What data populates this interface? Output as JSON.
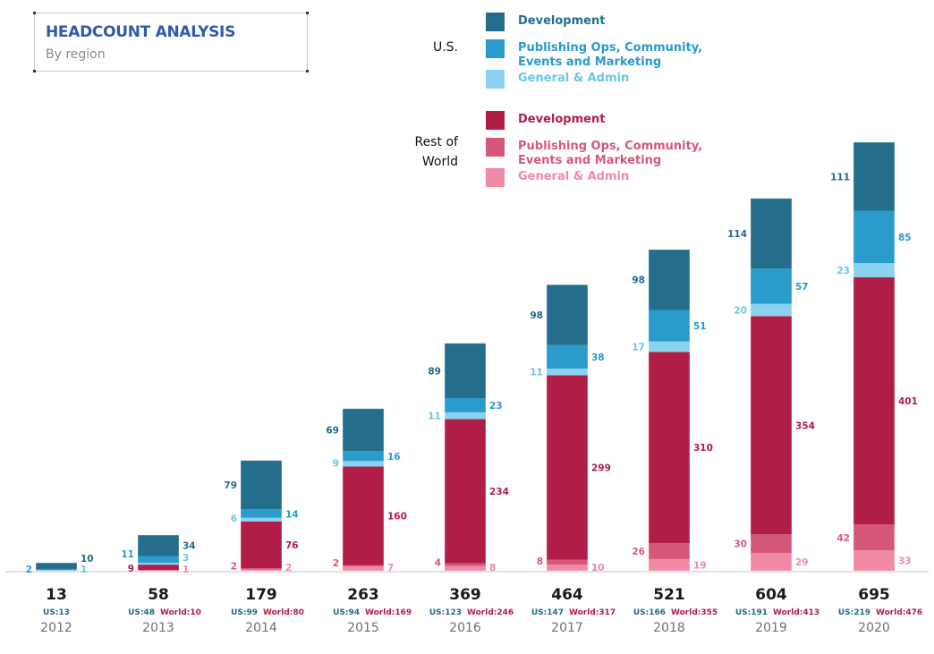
{
  "header": {
    "title": "HEADCOUNT ANALYSIS",
    "subtitle": "By region"
  },
  "legend": {
    "groups": [
      {
        "label": "U.S.",
        "items": [
          {
            "label": "Development",
            "color": "#246e8c"
          },
          {
            "label": "Publishing Ops, Community,\nEvents and Marketing",
            "color": "#2a9bca"
          },
          {
            "label": "General & Admin",
            "color": "#8ad2ee"
          }
        ]
      },
      {
        "label": "Rest of\nWorld",
        "items": [
          {
            "label": "Development",
            "color": "#b01e47"
          },
          {
            "label": "Publishing Ops, Community,\nEvents and Marketing",
            "color": "#d65879"
          },
          {
            "label": "General & Admin",
            "color": "#f08aa4"
          }
        ]
      }
    ]
  },
  "colors": {
    "us_dev": "#246e8c",
    "us_pub": "#2a9bca",
    "us_ga": "#8ad2ee",
    "us_ga_text": "#6cc4e6",
    "world_dev": "#b01e47",
    "world_pub": "#d65879",
    "world_ga": "#f08aa4",
    "us_total_text": "#236a8a",
    "world_total_text": "#b01e47",
    "total_text": "#1a1a1a",
    "year_text": "#707070",
    "axis": "#e0e0e0"
  },
  "chart_data": {
    "type": "bar",
    "stacked": true,
    "title": "HEADCOUNT ANALYSIS",
    "subtitle": "By region",
    "xlabel": "",
    "ylabel": "",
    "ylim": [
      0,
      700
    ],
    "grid": false,
    "legend_position": "top-center",
    "categories": [
      "2012",
      "2013",
      "2014",
      "2015",
      "2016",
      "2017",
      "2018",
      "2019",
      "2020"
    ],
    "series": [
      {
        "name": "Rest of World - General & Admin",
        "key": "world_ga",
        "values": [
          0,
          1,
          2,
          7,
          8,
          10,
          19,
          29,
          33
        ]
      },
      {
        "name": "Rest of World - Publishing Ops, Community, Events and Marketing",
        "key": "world_pub",
        "values": [
          0,
          0,
          2,
          2,
          4,
          8,
          26,
          30,
          42
        ]
      },
      {
        "name": "Rest of World - Development",
        "key": "world_dev",
        "values": [
          0,
          9,
          76,
          160,
          234,
          299,
          310,
          354,
          401
        ]
      },
      {
        "name": "U.S. - General & Admin",
        "key": "us_ga",
        "values": [
          1,
          3,
          6,
          9,
          11,
          11,
          17,
          20,
          23
        ]
      },
      {
        "name": "U.S. - Publishing Ops, Community, Events and Marketing",
        "key": "us_pub",
        "values": [
          2,
          11,
          14,
          16,
          23,
          38,
          51,
          57,
          85
        ]
      },
      {
        "name": "U.S. - Development",
        "key": "us_dev",
        "values": [
          10,
          34,
          79,
          69,
          89,
          98,
          98,
          114,
          111
        ]
      }
    ],
    "totals": [
      "13",
      "58",
      "179",
      "263",
      "369",
      "464",
      "521",
      "604",
      "695"
    ],
    "us_totals": [
      "US:13",
      "US:48",
      "US:99",
      "US:94",
      "US:123",
      "US:147",
      "US:166",
      "US:191",
      "US:219"
    ],
    "world_totals": [
      "",
      "World:10",
      "World:80",
      "World:169",
      "World:246",
      "World:317",
      "World:355",
      "World:413",
      "World:476"
    ]
  }
}
